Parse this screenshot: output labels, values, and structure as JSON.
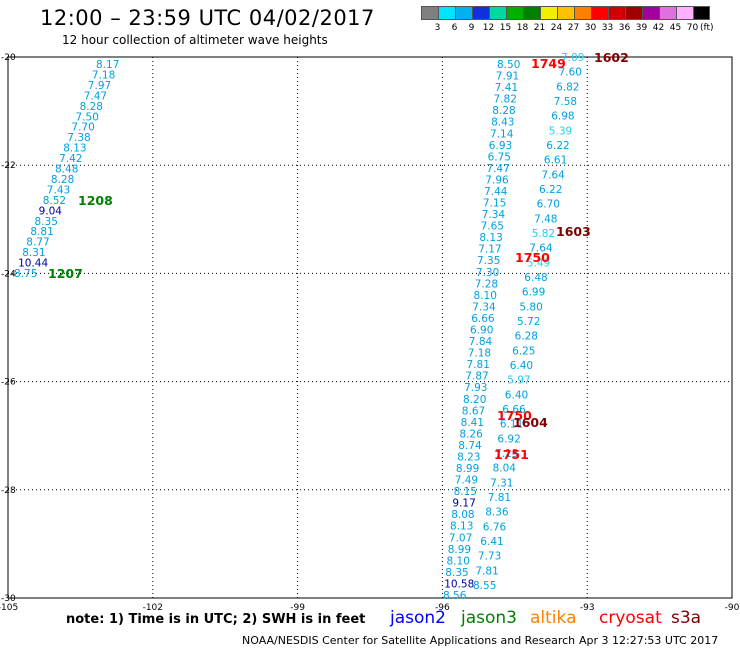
{
  "header": {
    "title": "12:00 – 23:59 UTC 04/02/2017",
    "subtitle": "12 hour collection of altimeter wave heights"
  },
  "colorbar": {
    "labels": [
      "3",
      "6",
      "9",
      "12",
      "15",
      "18",
      "21",
      "24",
      "27",
      "30",
      "33",
      "36",
      "39",
      "42",
      "45",
      "70"
    ],
    "unit": "(ft)",
    "colors": [
      "#808080",
      "#00e5ff",
      "#00b0f0",
      "#1030e0",
      "#00d8a0",
      "#00b000",
      "#008000",
      "#f0f000",
      "#ffc000",
      "#ff8000",
      "#ff0000",
      "#d00000",
      "#a00000",
      "#a000a0",
      "#e070e0",
      "#ffb0ff",
      "#000000"
    ]
  },
  "axes": {
    "lon_ticks": [
      "-105",
      "-102",
      "-99",
      "-96",
      "-93",
      "-90"
    ],
    "lat_ticks": [
      "-20",
      "-22",
      "-24",
      "-26",
      "-28",
      "-30"
    ]
  },
  "tracks": {
    "track_west": {
      "values": [
        "8.17",
        "7.18",
        "7.97",
        "7.47",
        "8.28",
        "7.50",
        "7.70",
        "7.38",
        "8.13",
        "7.42",
        "8.48",
        "8.28",
        "7.43",
        "8.52",
        "9.04",
        "8.35",
        "8.81",
        "8.77",
        "8.31",
        "10.44",
        "8.75"
      ],
      "colors": [
        "s",
        "s",
        "s",
        "s",
        "s",
        "s",
        "s",
        "s",
        "s",
        "s",
        "s",
        "s",
        "s",
        "s",
        "d",
        "s",
        "s",
        "s",
        "s",
        "d",
        "s"
      ]
    },
    "track_mid": {
      "values": [
        "8.50",
        "7.91",
        "7.41",
        "7.82",
        "8.28",
        "8.43",
        "7.14",
        "6.93",
        "6.75",
        "7.47",
        "7.96",
        "7.44",
        "7.15",
        "7.34",
        "7.65",
        "8.13",
        "7.17",
        "7.35",
        "7.30",
        "7.28",
        "8.10",
        "7.34",
        "6.66",
        "6.90",
        "7.84",
        "7.18",
        "7.81",
        "7.87",
        "7.93",
        "8.20",
        "8.67",
        "8.41",
        "8.26",
        "8.74",
        "8.23",
        "8.99",
        "7.49",
        "8.15",
        "9.17",
        "8.08",
        "8.13",
        "7.07",
        "8.99",
        "8.10",
        "8.35",
        "10.58",
        "8.56"
      ],
      "colors": [
        "s",
        "s",
        "s",
        "s",
        "s",
        "s",
        "s",
        "s",
        "s",
        "s",
        "s",
        "s",
        "s",
        "s",
        "s",
        "s",
        "s",
        "s",
        "s",
        "s",
        "s",
        "s",
        "s",
        "s",
        "s",
        "s",
        "s",
        "s",
        "s",
        "s",
        "s",
        "s",
        "s",
        "s",
        "s",
        "s",
        "s",
        "s",
        "d",
        "s",
        "s",
        "s",
        "s",
        "s",
        "s",
        "d",
        "s"
      ]
    },
    "track_east": {
      "values": [
        "7.09",
        "7.60",
        "6.82",
        "7.58",
        "6.98",
        "5.39",
        "6.22",
        "6.61",
        "7.64",
        "6.22",
        "6.70",
        "7.48",
        "5.82",
        "7.64",
        "5.49",
        "6.48",
        "6.99",
        "5.80",
        "5.72",
        "6.28",
        "6.25",
        "6.40",
        "5.97",
        "6.40",
        "6.66",
        "6.11",
        "6.92",
        "7.15",
        "8.04",
        "7.31",
        "7.81",
        "8.36",
        "6.76",
        "6.41",
        "7.73",
        "7.81",
        "8.55"
      ],
      "colors": [
        "l",
        "s",
        "s",
        "s",
        "s",
        "l",
        "s",
        "s",
        "s",
        "s",
        "s",
        "s",
        "l",
        "s",
        "l",
        "s",
        "s",
        "s",
        "s",
        "s",
        "s",
        "s",
        "l",
        "s",
        "s",
        "s",
        "s",
        "s",
        "s",
        "s",
        "s",
        "s",
        "s",
        "s",
        "s",
        "s",
        "s"
      ]
    }
  },
  "time_labels": [
    {
      "text": "1602",
      "color": "#800000"
    },
    {
      "text": "1749",
      "color": "#ff0000"
    },
    {
      "text": "1208",
      "color": "#008000"
    },
    {
      "text": "1207",
      "color": "#008000"
    },
    {
      "text": "1603",
      "color": "#800000"
    },
    {
      "text": "1750",
      "color": "#ff0000"
    },
    {
      "text": "1750",
      "color": "#ff0000"
    },
    {
      "text": "1604",
      "color": "#800000"
    },
    {
      "text": "1751",
      "color": "#ff0000"
    }
  ],
  "footer": {
    "note": "note: 1) Time is in UTC; 2) SWH is in feet",
    "legend": [
      {
        "label": "jason2",
        "color": "#0000ff"
      },
      {
        "label": "jason3",
        "color": "#008000"
      },
      {
        "label": "altika",
        "color": "#ff8000"
      },
      {
        "label": "cryosat",
        "color": "#ff0000"
      },
      {
        "label": "s3a",
        "color": "#800000"
      }
    ],
    "credit": "NOAA/NESDIS Center for Satellite Applications and Research",
    "stamp": "Apr  3 12:27:53 UTC 2017"
  },
  "palette": {
    "s": "#00a0e0",
    "l": "#20d0f0",
    "d": "#0000a0"
  }
}
